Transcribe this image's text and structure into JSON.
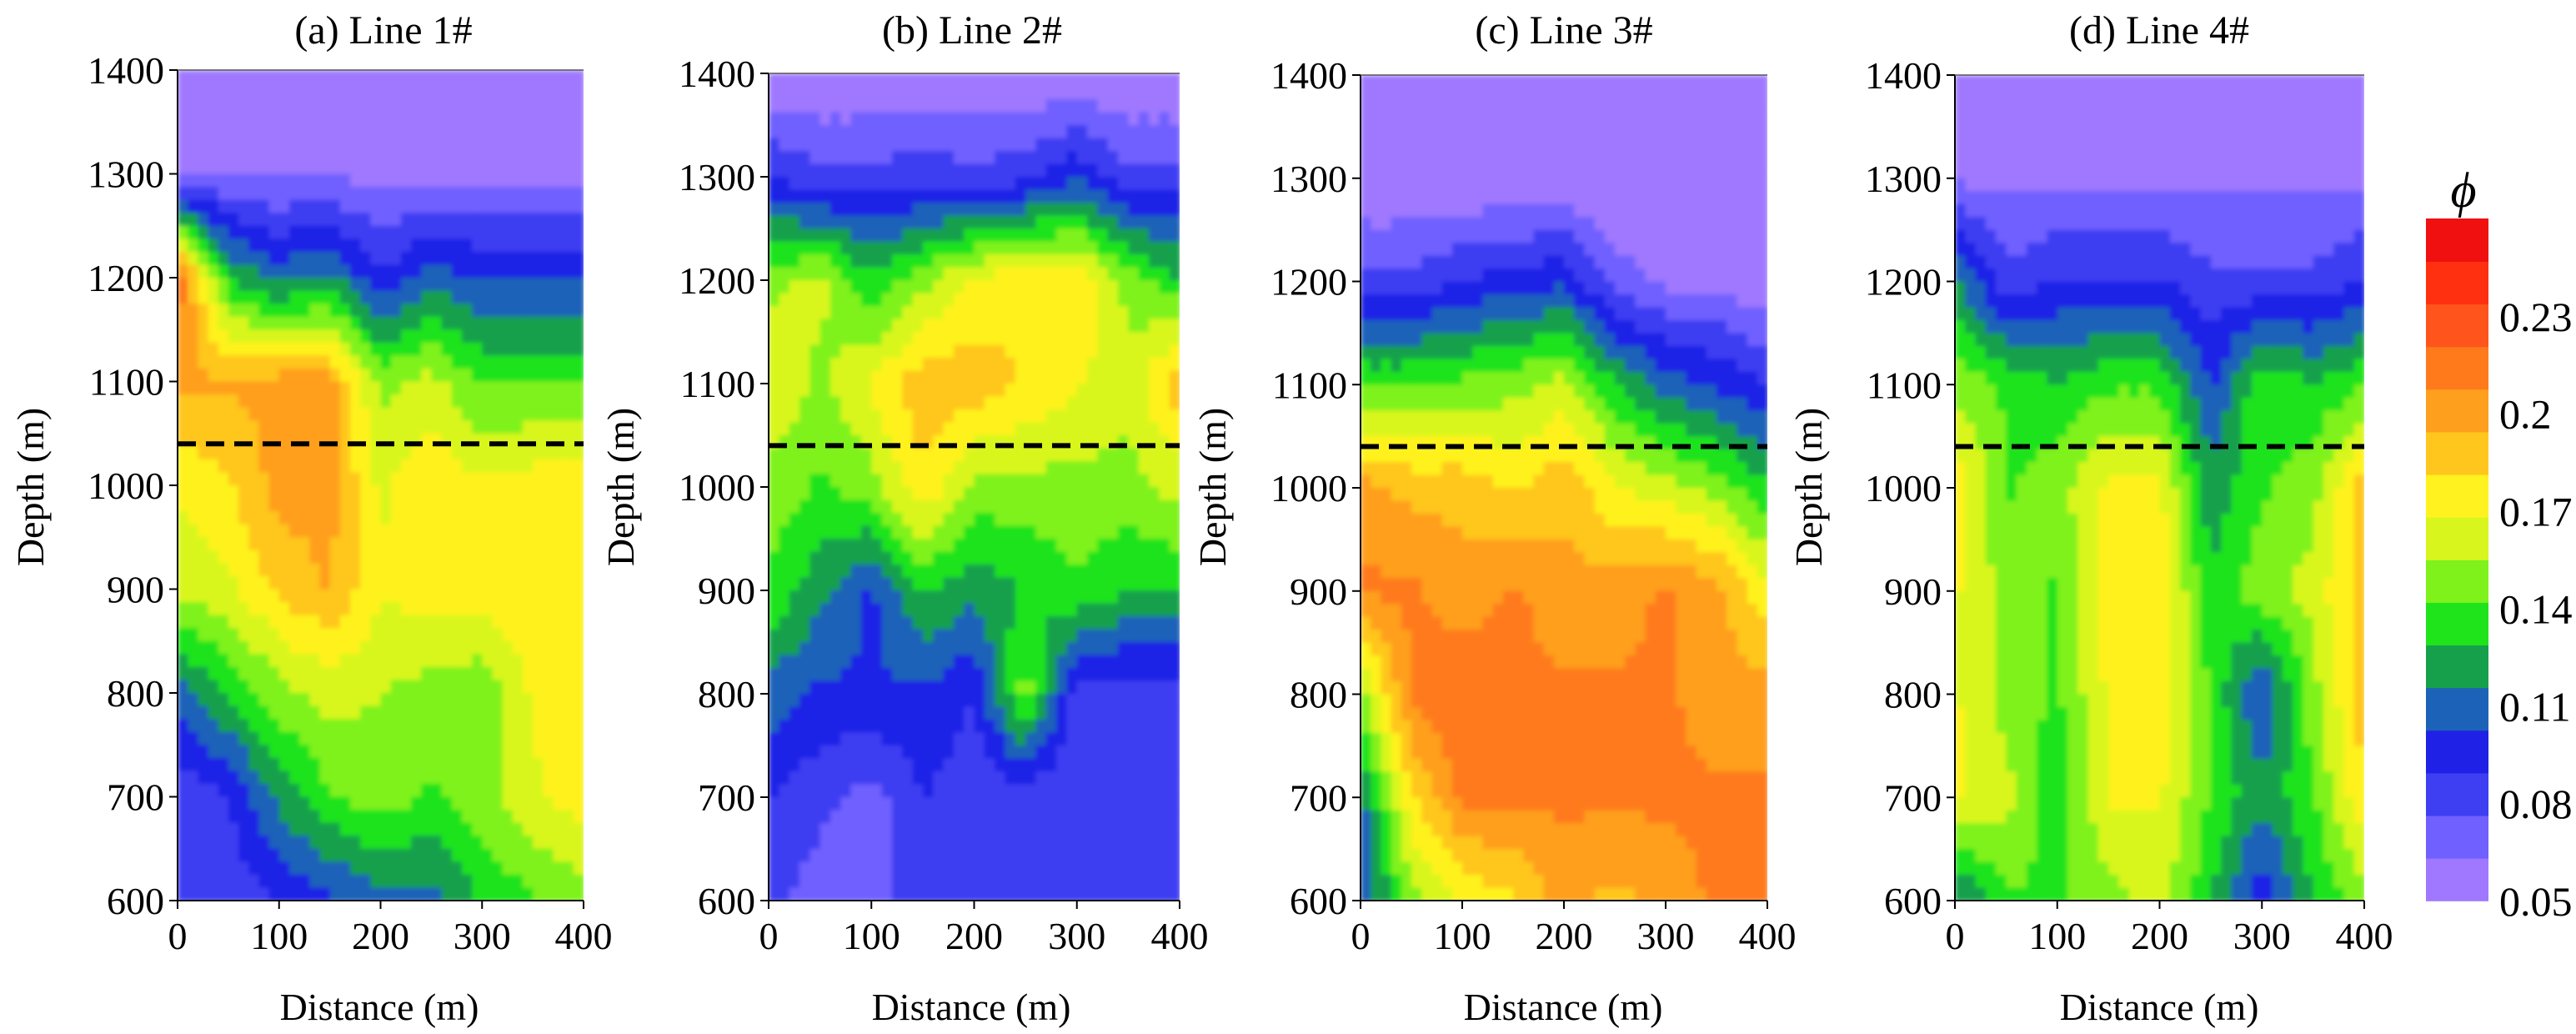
{
  "chart_data": {
    "type": "heatmap",
    "shared": {
      "xlabel": "Distance (m)",
      "ylabel": "Depth (m)",
      "xlim": [
        0,
        400
      ],
      "ylim": [
        600,
        1400
      ],
      "xticks": [
        "0",
        "100",
        "200",
        "300",
        "400"
      ],
      "yticks": [
        "1400",
        "1300",
        "1200",
        "1100",
        "1000",
        "900",
        "800",
        "700",
        "600"
      ],
      "reference_line_depth": 1040,
      "reference_line_style": "dashed"
    },
    "colorbar": {
      "title": "ϕ",
      "ticks": [
        "0.23",
        "0.2",
        "0.17",
        "0.14",
        "0.11",
        "0.08",
        "0.05"
      ],
      "range": [
        0.05,
        0.26
      ],
      "colors": [
        "#9f78ff",
        "#7060ff",
        "#3e3ef2",
        "#1f22e6",
        "#1b62b8",
        "#17a04c",
        "#1fe31b",
        "#7ff21b",
        "#d8f61e",
        "#fff21e",
        "#ffc61e",
        "#ff9f1e",
        "#ff7a1b",
        "#ff541b",
        "#ff3010",
        "#f01010"
      ]
    },
    "panels": [
      {
        "id": "a",
        "title": "(a) Line 1#",
        "x": [
          0,
          50,
          100,
          150,
          200,
          250,
          300,
          350,
          400
        ],
        "depths": [
          1400,
          1300,
          1200,
          1100,
          1000,
          900,
          800,
          700,
          600
        ],
        "phi": [
          [
            0.05,
            0.05,
            0.05,
            0.05,
            0.05,
            0.05,
            0.05,
            0.05,
            0.05
          ],
          [
            0.06,
            0.06,
            0.06,
            0.06,
            0.06,
            0.06,
            0.06,
            0.06,
            0.06
          ],
          [
            0.22,
            0.13,
            0.11,
            0.12,
            0.09,
            0.11,
            0.1,
            0.1,
            0.1
          ],
          [
            0.2,
            0.195,
            0.2,
            0.2,
            0.15,
            0.16,
            0.14,
            0.14,
            0.14
          ],
          [
            0.17,
            0.18,
            0.2,
            0.2,
            0.165,
            0.18,
            0.17,
            0.175,
            0.18
          ],
          [
            0.16,
            0.165,
            0.185,
            0.195,
            0.17,
            0.175,
            0.175,
            0.18,
            0.18
          ],
          [
            0.11,
            0.13,
            0.15,
            0.16,
            0.155,
            0.15,
            0.145,
            0.17,
            0.18
          ],
          [
            0.08,
            0.09,
            0.12,
            0.14,
            0.15,
            0.14,
            0.15,
            0.165,
            0.175
          ],
          [
            0.08,
            0.08,
            0.09,
            0.1,
            0.11,
            0.11,
            0.13,
            0.14,
            0.15
          ]
        ]
      },
      {
        "id": "b",
        "title": "(b) Line 2#",
        "x": [
          0,
          50,
          100,
          150,
          200,
          250,
          300,
          350,
          400
        ],
        "depths": [
          1400,
          1300,
          1200,
          1100,
          1000,
          900,
          800,
          700,
          600
        ],
        "phi": [
          [
            0.05,
            0.05,
            0.05,
            0.05,
            0.05,
            0.05,
            0.05,
            0.05,
            0.05
          ],
          [
            0.09,
            0.08,
            0.08,
            0.085,
            0.08,
            0.085,
            0.1,
            0.08,
            0.08
          ],
          [
            0.15,
            0.16,
            0.13,
            0.15,
            0.17,
            0.18,
            0.18,
            0.15,
            0.13
          ],
          [
            0.17,
            0.15,
            0.17,
            0.19,
            0.19,
            0.18,
            0.17,
            0.16,
            0.19
          ],
          [
            0.15,
            0.14,
            0.15,
            0.18,
            0.15,
            0.15,
            0.15,
            0.15,
            0.16
          ],
          [
            0.14,
            0.12,
            0.1,
            0.13,
            0.12,
            0.13,
            0.14,
            0.13,
            0.13
          ],
          [
            0.11,
            0.1,
            0.1,
            0.1,
            0.09,
            0.15,
            0.08,
            0.08,
            0.08
          ],
          [
            0.09,
            0.08,
            0.07,
            0.09,
            0.08,
            0.08,
            0.08,
            0.08,
            0.08
          ],
          [
            0.08,
            0.07,
            0.07,
            0.09,
            0.08,
            0.08,
            0.08,
            0.08,
            0.08
          ]
        ]
      },
      {
        "id": "c",
        "title": "(c) Line 3#",
        "x": [
          0,
          50,
          100,
          150,
          200,
          250,
          300,
          350,
          400
        ],
        "depths": [
          1400,
          1300,
          1200,
          1100,
          1000,
          900,
          800,
          700,
          600
        ],
        "phi": [
          [
            0.05,
            0.05,
            0.05,
            0.05,
            0.05,
            0.05,
            0.05,
            0.05,
            0.05
          ],
          [
            0.05,
            0.05,
            0.05,
            0.05,
            0.05,
            0.05,
            0.05,
            0.05,
            0.05
          ],
          [
            0.08,
            0.08,
            0.09,
            0.095,
            0.1,
            0.07,
            0.06,
            0.06,
            0.05
          ],
          [
            0.14,
            0.14,
            0.145,
            0.15,
            0.16,
            0.13,
            0.11,
            0.1,
            0.09
          ],
          [
            0.2,
            0.19,
            0.19,
            0.18,
            0.19,
            0.17,
            0.16,
            0.15,
            0.13
          ],
          [
            0.21,
            0.21,
            0.2,
            0.21,
            0.2,
            0.2,
            0.21,
            0.2,
            0.17
          ],
          [
            0.15,
            0.21,
            0.22,
            0.21,
            0.21,
            0.21,
            0.21,
            0.2,
            0.2
          ],
          [
            0.11,
            0.18,
            0.21,
            0.21,
            0.21,
            0.21,
            0.21,
            0.21,
            0.21
          ],
          [
            0.1,
            0.15,
            0.17,
            0.18,
            0.2,
            0.19,
            0.2,
            0.21,
            0.21
          ]
        ]
      },
      {
        "id": "d",
        "title": "(d) Line 4#",
        "x": [
          0,
          50,
          100,
          150,
          200,
          250,
          300,
          350,
          400
        ],
        "depths": [
          1400,
          1300,
          1200,
          1100,
          1000,
          900,
          800,
          700,
          600
        ],
        "phi": [
          [
            0.05,
            0.05,
            0.05,
            0.05,
            0.05,
            0.05,
            0.05,
            0.05,
            0.05
          ],
          [
            0.06,
            0.06,
            0.06,
            0.06,
            0.06,
            0.06,
            0.06,
            0.06,
            0.06
          ],
          [
            0.12,
            0.08,
            0.09,
            0.09,
            0.09,
            0.08,
            0.08,
            0.08,
            0.09
          ],
          [
            0.15,
            0.14,
            0.13,
            0.14,
            0.14,
            0.1,
            0.14,
            0.13,
            0.14
          ],
          [
            0.18,
            0.14,
            0.15,
            0.17,
            0.17,
            0.12,
            0.14,
            0.15,
            0.19
          ],
          [
            0.17,
            0.15,
            0.14,
            0.18,
            0.18,
            0.13,
            0.15,
            0.16,
            0.19
          ],
          [
            0.17,
            0.15,
            0.14,
            0.17,
            0.18,
            0.14,
            0.1,
            0.15,
            0.19
          ],
          [
            0.17,
            0.16,
            0.13,
            0.17,
            0.17,
            0.14,
            0.12,
            0.14,
            0.18
          ],
          [
            0.11,
            0.14,
            0.14,
            0.15,
            0.16,
            0.13,
            0.09,
            0.13,
            0.15
          ]
        ]
      }
    ]
  }
}
